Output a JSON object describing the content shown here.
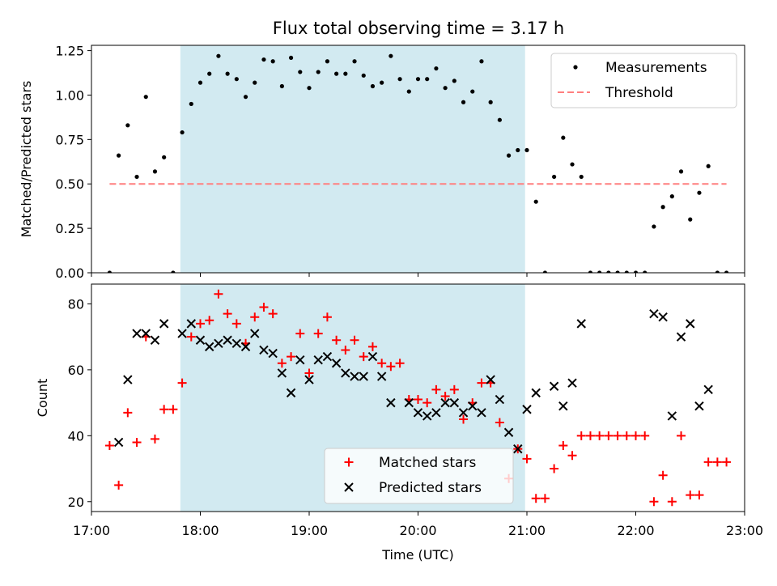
{
  "chart_data": [
    {
      "type": "scatter",
      "title": "Flux total observing time = 3.17 h",
      "xlabel": "",
      "ylabel": "Matched/Predicted stars",
      "xlim": [
        "17:00",
        "23:00"
      ],
      "ylim": [
        0,
        1.28
      ],
      "yticks": [
        "0.00",
        "0.25",
        "0.50",
        "0.75",
        "1.00",
        "1.25"
      ],
      "shaded_interval": [
        "17:49",
        "20:59"
      ],
      "shade_color": "#add8e6",
      "legend_position": "upper right",
      "series": [
        {
          "name": "Measurements",
          "color": "#000000",
          "marker": "dot",
          "points": [
            [
              "17:10",
              0.0
            ],
            [
              "17:15",
              0.66
            ],
            [
              "17:20",
              0.83
            ],
            [
              "17:25",
              0.54
            ],
            [
              "17:30",
              0.99
            ],
            [
              "17:35",
              0.57
            ],
            [
              "17:40",
              0.65
            ],
            [
              "17:45",
              0.0
            ],
            [
              "17:50",
              0.79
            ],
            [
              "17:55",
              0.95
            ],
            [
              "18:00",
              1.07
            ],
            [
              "18:05",
              1.12
            ],
            [
              "18:10",
              1.22
            ],
            [
              "18:15",
              1.12
            ],
            [
              "18:20",
              1.09
            ],
            [
              "18:25",
              0.99
            ],
            [
              "18:30",
              1.07
            ],
            [
              "18:35",
              1.2
            ],
            [
              "18:40",
              1.19
            ],
            [
              "18:45",
              1.05
            ],
            [
              "18:50",
              1.21
            ],
            [
              "18:55",
              1.13
            ],
            [
              "19:00",
              1.04
            ],
            [
              "19:05",
              1.13
            ],
            [
              "19:10",
              1.19
            ],
            [
              "19:15",
              1.12
            ],
            [
              "19:20",
              1.12
            ],
            [
              "19:25",
              1.19
            ],
            [
              "19:30",
              1.11
            ],
            [
              "19:35",
              1.05
            ],
            [
              "19:40",
              1.07
            ],
            [
              "19:45",
              1.22
            ],
            [
              "19:50",
              1.09
            ],
            [
              "19:55",
              1.02
            ],
            [
              "20:00",
              1.09
            ],
            [
              "20:05",
              1.09
            ],
            [
              "20:10",
              1.15
            ],
            [
              "20:15",
              1.04
            ],
            [
              "20:20",
              1.08
            ],
            [
              "20:25",
              0.96
            ],
            [
              "20:30",
              1.02
            ],
            [
              "20:35",
              1.19
            ],
            [
              "20:40",
              0.96
            ],
            [
              "20:45",
              0.86
            ],
            [
              "20:50",
              0.66
            ],
            [
              "20:55",
              0.69
            ],
            [
              "21:00",
              0.69
            ],
            [
              "21:05",
              0.4
            ],
            [
              "21:10",
              0.0
            ],
            [
              "21:15",
              0.54
            ],
            [
              "21:20",
              0.76
            ],
            [
              "21:25",
              0.61
            ],
            [
              "21:30",
              0.54
            ],
            [
              "21:35",
              0.0
            ],
            [
              "21:40",
              0.0
            ],
            [
              "21:45",
              0.0
            ],
            [
              "21:50",
              0.0
            ],
            [
              "21:55",
              0.0
            ],
            [
              "22:00",
              0.0
            ],
            [
              "22:05",
              0.0
            ],
            [
              "22:10",
              0.26
            ],
            [
              "22:15",
              0.37
            ],
            [
              "22:20",
              0.43
            ],
            [
              "22:25",
              0.57
            ],
            [
              "22:30",
              0.3
            ],
            [
              "22:35",
              0.45
            ],
            [
              "22:40",
              0.6
            ],
            [
              "22:45",
              0.0
            ],
            [
              "22:50",
              0.0
            ]
          ]
        },
        {
          "name": "Threshold",
          "color": "#ff7f7f",
          "marker": "dashed-line",
          "points": [
            [
              "17:10",
              0.5
            ],
            [
              "22:50",
              0.5
            ]
          ]
        }
      ]
    },
    {
      "type": "scatter",
      "title": "",
      "xlabel": "Time (UTC)",
      "ylabel": "Count",
      "xlim": [
        "17:00",
        "23:00"
      ],
      "ylim": [
        17,
        86
      ],
      "xticks": [
        "17:00",
        "18:00",
        "19:00",
        "20:00",
        "21:00",
        "22:00",
        "23:00"
      ],
      "yticks": [
        "20",
        "40",
        "60",
        "80"
      ],
      "shaded_interval": [
        "17:49",
        "20:59"
      ],
      "shade_color": "#add8e6",
      "legend_position": "lower center",
      "series": [
        {
          "name": "Matched stars",
          "color": "#ff0000",
          "marker": "plus",
          "points": [
            [
              "17:10",
              37
            ],
            [
              "17:15",
              25
            ],
            [
              "17:20",
              47
            ],
            [
              "17:25",
              38
            ],
            [
              "17:30",
              70
            ],
            [
              "17:35",
              39
            ],
            [
              "17:40",
              48
            ],
            [
              "17:45",
              48
            ],
            [
              "17:50",
              56
            ],
            [
              "17:55",
              70
            ],
            [
              "18:00",
              74
            ],
            [
              "18:05",
              75
            ],
            [
              "18:10",
              83
            ],
            [
              "18:15",
              77
            ],
            [
              "18:20",
              74
            ],
            [
              "18:25",
              68
            ],
            [
              "18:30",
              76
            ],
            [
              "18:35",
              79
            ],
            [
              "18:40",
              77
            ],
            [
              "18:45",
              62
            ],
            [
              "18:50",
              64
            ],
            [
              "18:55",
              71
            ],
            [
              "19:00",
              59
            ],
            [
              "19:05",
              71
            ],
            [
              "19:10",
              76
            ],
            [
              "19:15",
              69
            ],
            [
              "19:20",
              66
            ],
            [
              "19:25",
              69
            ],
            [
              "19:30",
              64
            ],
            [
              "19:35",
              67
            ],
            [
              "19:40",
              62
            ],
            [
              "19:45",
              61
            ],
            [
              "19:50",
              62
            ],
            [
              "19:55",
              51
            ],
            [
              "20:00",
              51
            ],
            [
              "20:05",
              50
            ],
            [
              "20:10",
              54
            ],
            [
              "20:15",
              52
            ],
            [
              "20:20",
              54
            ],
            [
              "20:25",
              45
            ],
            [
              "20:30",
              50
            ],
            [
              "20:35",
              56
            ],
            [
              "20:40",
              56
            ],
            [
              "20:45",
              44
            ],
            [
              "20:50",
              27
            ],
            [
              "20:55",
              36
            ],
            [
              "21:00",
              33
            ],
            [
              "21:05",
              21
            ],
            [
              "21:10",
              21
            ],
            [
              "21:15",
              30
            ],
            [
              "21:20",
              37
            ],
            [
              "21:25",
              34
            ],
            [
              "21:30",
              40
            ],
            [
              "21:35",
              40
            ],
            [
              "21:40",
              40
            ],
            [
              "21:45",
              40
            ],
            [
              "21:50",
              40
            ],
            [
              "21:55",
              40
            ],
            [
              "22:00",
              40
            ],
            [
              "22:05",
              40
            ],
            [
              "22:10",
              20
            ],
            [
              "22:15",
              28
            ],
            [
              "22:20",
              20
            ],
            [
              "22:25",
              40
            ],
            [
              "22:30",
              22
            ],
            [
              "22:35",
              22
            ],
            [
              "22:40",
              32
            ],
            [
              "22:45",
              32
            ],
            [
              "22:50",
              32
            ]
          ]
        },
        {
          "name": "Predicted stars",
          "color": "#000000",
          "marker": "x",
          "points": [
            [
              "17:15",
              38
            ],
            [
              "17:20",
              57
            ],
            [
              "17:25",
              71
            ],
            [
              "17:30",
              71
            ],
            [
              "17:35",
              69
            ],
            [
              "17:40",
              74
            ],
            [
              "17:50",
              71
            ],
            [
              "17:55",
              74
            ],
            [
              "18:00",
              69
            ],
            [
              "18:05",
              67
            ],
            [
              "18:10",
              68
            ],
            [
              "18:15",
              69
            ],
            [
              "18:20",
              68
            ],
            [
              "18:25",
              67
            ],
            [
              "18:30",
              71
            ],
            [
              "18:35",
              66
            ],
            [
              "18:40",
              65
            ],
            [
              "18:45",
              59
            ],
            [
              "18:50",
              53
            ],
            [
              "18:55",
              63
            ],
            [
              "19:00",
              57
            ],
            [
              "19:05",
              63
            ],
            [
              "19:10",
              64
            ],
            [
              "19:15",
              62
            ],
            [
              "19:20",
              59
            ],
            [
              "19:25",
              58
            ],
            [
              "19:30",
              58
            ],
            [
              "19:35",
              64
            ],
            [
              "19:40",
              58
            ],
            [
              "19:45",
              50
            ],
            [
              "19:55",
              50
            ],
            [
              "20:00",
              47
            ],
            [
              "20:05",
              46
            ],
            [
              "20:10",
              47
            ],
            [
              "20:15",
              50
            ],
            [
              "20:20",
              50
            ],
            [
              "20:25",
              47
            ],
            [
              "20:30",
              49
            ],
            [
              "20:35",
              47
            ],
            [
              "20:40",
              57
            ],
            [
              "20:45",
              51
            ],
            [
              "20:50",
              41
            ],
            [
              "20:55",
              36
            ],
            [
              "21:00",
              48
            ],
            [
              "21:05",
              53
            ],
            [
              "21:15",
              55
            ],
            [
              "21:20",
              49
            ],
            [
              "21:25",
              56
            ],
            [
              "21:30",
              74
            ],
            [
              "22:10",
              77
            ],
            [
              "22:15",
              76
            ],
            [
              "22:20",
              46
            ],
            [
              "22:25",
              70
            ],
            [
              "22:30",
              74
            ],
            [
              "22:35",
              49
            ],
            [
              "22:40",
              54
            ]
          ]
        }
      ]
    }
  ]
}
